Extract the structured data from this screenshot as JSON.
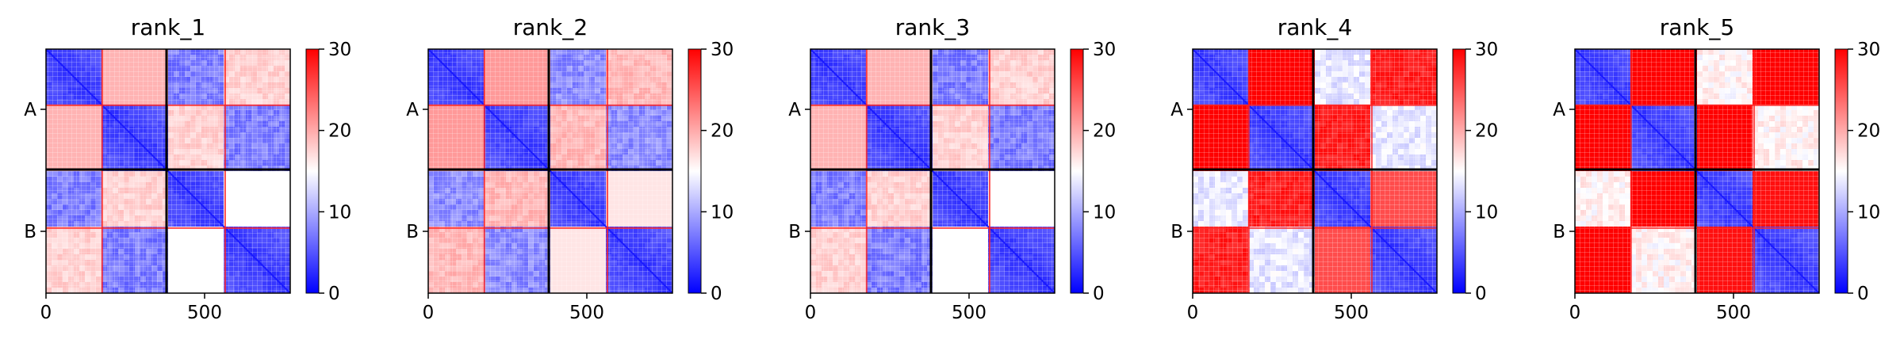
{
  "chart_data": [
    {
      "type": "heatmap",
      "title": "rank_1",
      "chains": [
        "A",
        "B"
      ],
      "x_ticks": [
        0,
        500
      ],
      "x_range": [
        0,
        770
      ],
      "chain_lengths": [
        380,
        390
      ],
      "colorbar": {
        "min": 0,
        "max": 30,
        "ticks": [
          0,
          10,
          20,
          30
        ],
        "colormap": "bwr"
      },
      "off_diagonal_level": 0.45
    },
    {
      "type": "heatmap",
      "title": "rank_2",
      "chains": [
        "A",
        "B"
      ],
      "x_ticks": [
        0,
        500
      ],
      "x_range": [
        0,
        770
      ],
      "chain_lengths": [
        380,
        390
      ],
      "colorbar": {
        "min": 0,
        "max": 30,
        "ticks": [
          0,
          10,
          20,
          30
        ],
        "colormap": "bwr"
      },
      "off_diagonal_level": 0.5
    },
    {
      "type": "heatmap",
      "title": "rank_3",
      "chains": [
        "A",
        "B"
      ],
      "x_ticks": [
        0,
        500
      ],
      "x_range": [
        0,
        770
      ],
      "chain_lengths": [
        380,
        390
      ],
      "colorbar": {
        "min": 0,
        "max": 30,
        "ticks": [
          0,
          10,
          20,
          30
        ],
        "colormap": "bwr"
      },
      "off_diagonal_level": 0.45
    },
    {
      "type": "heatmap",
      "title": "rank_4",
      "chains": [
        "A",
        "B"
      ],
      "x_ticks": [
        0,
        500
      ],
      "x_range": [
        0,
        770
      ],
      "chain_lengths": [
        380,
        390
      ],
      "colorbar": {
        "min": 0,
        "max": 30,
        "ticks": [
          0,
          10,
          20,
          30
        ],
        "colormap": "bwr"
      },
      "off_diagonal_level": 0.8
    },
    {
      "type": "heatmap",
      "title": "rank_5",
      "chains": [
        "A",
        "B"
      ],
      "x_ticks": [
        0,
        500
      ],
      "x_range": [
        0,
        770
      ],
      "chain_lengths": [
        380,
        390
      ],
      "colorbar": {
        "min": 0,
        "max": 30,
        "ticks": [
          0,
          10,
          20,
          30
        ],
        "colormap": "bwr"
      },
      "off_diagonal_level": 0.92
    }
  ]
}
